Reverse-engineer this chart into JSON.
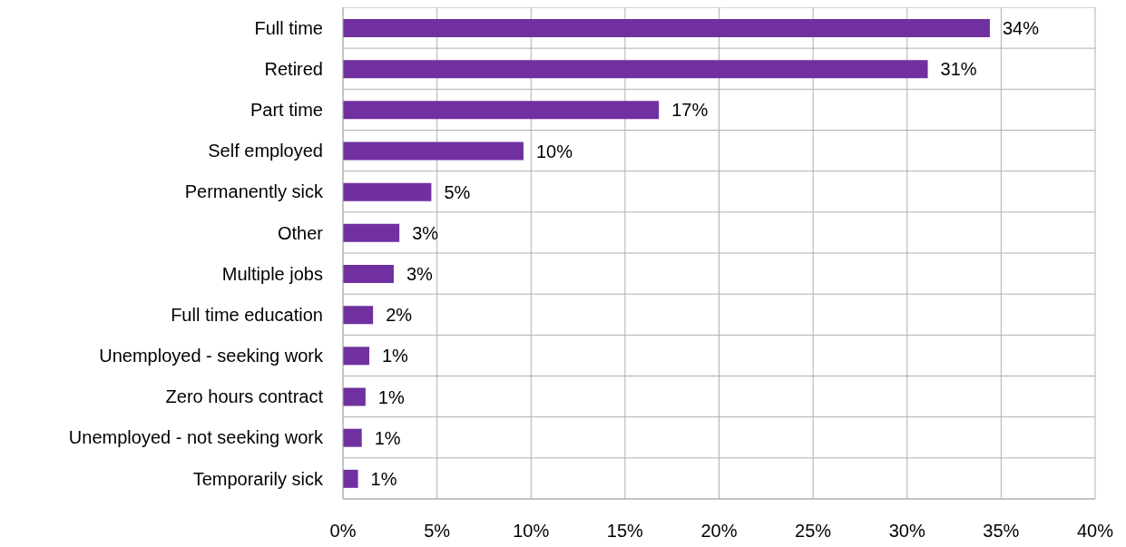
{
  "chart_data": {
    "type": "bar",
    "orientation": "horizontal",
    "categories": [
      "Full time",
      "Retired",
      "Part time",
      "Self employed",
      "Permanently sick",
      "Other",
      "Multiple jobs",
      "Full time education",
      "Unemployed - seeking work",
      "Zero hours contract",
      "Unemployed  - not seeking work",
      "Temporarily sick"
    ],
    "values": [
      34.4,
      31.1,
      16.8,
      9.6,
      4.7,
      3.0,
      2.7,
      1.6,
      1.4,
      1.2,
      1.0,
      0.8
    ],
    "value_labels": [
      "34%",
      "31%",
      "17%",
      "10%",
      "5%",
      "3%",
      "3%",
      "2%",
      "1%",
      "1%",
      "1%",
      "1%"
    ],
    "color": "#7030a0",
    "xlim": [
      0,
      40
    ],
    "xticks": [
      {
        "value": 0,
        "label": "0%"
      },
      {
        "value": 5,
        "label": "5%"
      },
      {
        "value": 10,
        "label": "10%"
      },
      {
        "value": 15,
        "label": "15%"
      },
      {
        "value": 20,
        "label": "20%"
      },
      {
        "value": 25,
        "label": "25%"
      },
      {
        "value": 30,
        "label": "30%"
      },
      {
        "value": 35,
        "label": "35%"
      },
      {
        "value": 40,
        "label": "40%"
      }
    ],
    "grid": true
  }
}
